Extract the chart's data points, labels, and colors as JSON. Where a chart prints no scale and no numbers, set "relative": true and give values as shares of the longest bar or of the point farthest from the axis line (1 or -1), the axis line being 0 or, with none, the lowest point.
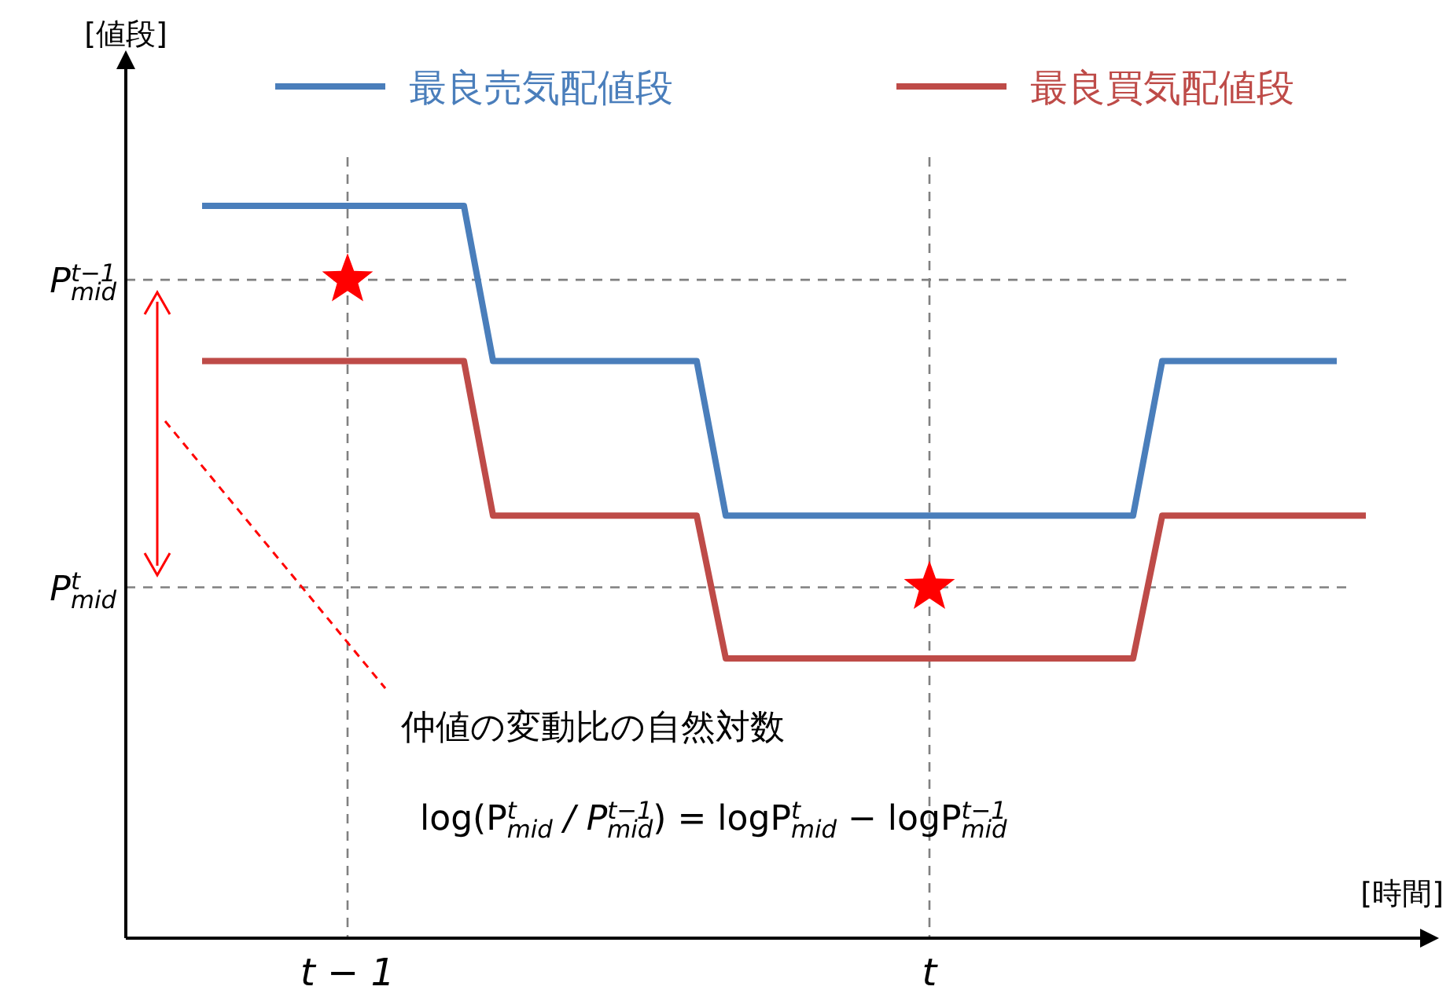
{
  "chart_data": {
    "type": "line",
    "relative": true,
    "xlabel": "[時間]",
    "legend": "top",
    "line_style": "solid",
    "categories": [
      null,
      null,
      null,
      null,
      null,
      null,
      "t − 1",
      null,
      null,
      null,
      null,
      null,
      null,
      null,
      null,
      null,
      null,
      null,
      null,
      null,
      null,
      null,
      null,
      null,
      null,
      null,
      "t",
      null,
      null,
      null,
      null,
      null,
      null,
      null,
      null,
      null,
      null,
      null,
      null,
      null,
      null,
      null,
      null
    ],
    "series": [
      {
        "name": "最良売気配値段",
        "color": "#4a7ebb",
        "values": [
          null,
          1,
          1,
          1,
          1,
          1,
          1,
          1,
          1,
          1,
          1,
          0.788,
          0.788,
          0.788,
          0.788,
          0.788,
          0.788,
          0.788,
          0.788,
          0.577,
          0.577,
          0.577,
          0.577,
          0.577,
          0.577,
          0.577,
          0.577,
          0.577,
          0.577,
          0.577,
          0.577,
          0.577,
          0.577,
          0.577,
          0.788,
          0.788,
          0.788,
          0.788,
          0.788,
          0.788,
          0.788,
          null,
          null
        ]
      },
      {
        "name": "最良買気配値段",
        "color": "#be4b48",
        "values": [
          null,
          0.788,
          0.788,
          0.788,
          0.788,
          0.788,
          0.788,
          0.788,
          0.788,
          0.788,
          0.788,
          0.577,
          0.577,
          0.577,
          0.577,
          0.577,
          0.577,
          0.577,
          0.577,
          0.382,
          0.382,
          0.382,
          0.382,
          0.382,
          0.382,
          0.382,
          0.382,
          0.382,
          0.382,
          0.382,
          0.382,
          0.382,
          0.382,
          0.382,
          0.577,
          0.577,
          0.577,
          0.577,
          0.577,
          0.577,
          0.577,
          0.577,
          null
        ]
      },
      {
        "type": "scatter",
        "marker": "star",
        "color": "#ff0000",
        "x": [
          "t − 1",
          "t"
        ],
        "values": [
          0.899,
          0.479
        ]
      }
    ],
    "ref_lines": [
      {
        "axis": "y",
        "value": 0.899,
        "label": "P$_{mid}$$^{t−1}$",
        "color": "#808080",
        "line_style": "dashed"
      },
      {
        "axis": "y",
        "value": 0.479,
        "label": "P$_{mid}$$^{t}$",
        "color": "#808080",
        "line_style": "dashed"
      },
      {
        "axis": "x",
        "value": "t − 1",
        "label": null,
        "color": "#808080",
        "line_style": "dashed"
      },
      {
        "axis": "x",
        "value": "t",
        "label": null,
        "color": "#808080",
        "line_style": "dashed"
      }
    ],
    "annotations": [
      "[値段]",
      "仲値の変動比の自然対数",
      "log(P$_{mid}$$^{t}$ / P$_{mid}$$^{t−1}$) = logP$_{mid}$$^{t}$ − logP$_{mid}$$^{t−1}$"
    ]
  }
}
